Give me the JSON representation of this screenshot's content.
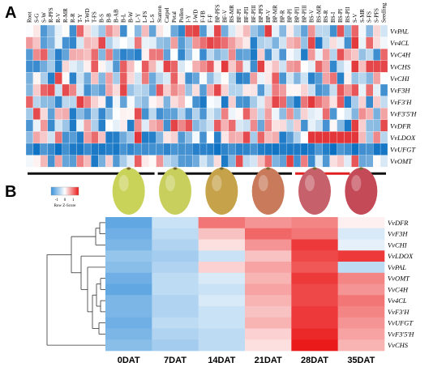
{
  "panel_a": {
    "letter": "A",
    "columns": [
      "Root",
      "S-G",
      "S-W",
      "R-PFS",
      "R-V",
      "R-MR",
      "R-R",
      "T-Y",
      "T-WD",
      "T-FS",
      "B-S",
      "B-B",
      "B-AB",
      "B-L",
      "B-W",
      "L-Y",
      "L-FS",
      "L-S",
      "Stamen",
      "Carpel",
      "Petal",
      "Pollen",
      "I-Y",
      "I-WD",
      "F-FB",
      "F-F",
      "BP-PFS",
      "BF-V",
      "BS-MR",
      "BF-PI",
      "BF-PII",
      "BF-PIII",
      "BP-PFS",
      "BP-V",
      "BP-MR",
      "BP-R",
      "BP-PI",
      "BP-PII",
      "BP-PIII",
      "BS-V",
      "BS-MR",
      "BS-R",
      "BS-I",
      "BS-PI",
      "BS-PII",
      "S-V",
      "S-MR",
      "S-FS",
      "S-PFS",
      "Seedling"
    ],
    "genes": [
      "VvPAL",
      "Vv4CL",
      "VvC4H",
      "VvCHS",
      "VvCHI",
      "VvF3H",
      "VvF3'H",
      "VvF3'5'H",
      "VvDFR",
      "VvLDOX",
      "VvUFGT",
      "VvOMT"
    ],
    "colors": {
      "low": "#0a6fc2",
      "mid": "#ffffff",
      "high": "#e0272b"
    }
  },
  "panel_b": {
    "letter": "B",
    "color_key": {
      "title": "Row Z-Score",
      "ticks": [
        "-1",
        "0",
        "1"
      ]
    },
    "stages": [
      "0DAT",
      "7DAT",
      "14DAT",
      "21DAT",
      "28DAT",
      "35DAT"
    ],
    "genes": [
      "VvDFR",
      "VvF3H",
      "VvCHI",
      "VvLDOX",
      "VvPAL",
      "VvOMT",
      "VvC4H",
      "Vv4CL",
      "VvF3'H",
      "VvUFGT",
      "VvF3'5'H",
      "VvCHS"
    ],
    "berry_colors": [
      "#c9d35a",
      "#c8cf5c",
      "#c6a24a",
      "#c97a5a",
      "#c6606a",
      "#c44a58"
    ],
    "colors": {
      "low": "#3a92db",
      "mid": "#ffffff",
      "high": "#ea1a1a"
    },
    "chart_data": {
      "type": "heatmap",
      "x": [
        "0DAT",
        "7DAT",
        "14DAT",
        "21DAT",
        "28DAT",
        "35DAT"
      ],
      "y": [
        "VvDFR",
        "VvF3H",
        "VvCHI",
        "VvLDOX",
        "VvPAL",
        "VvOMT",
        "VvC4H",
        "Vv4CL",
        "VvF3'H",
        "VvUFGT",
        "VvF3'5'H",
        "VvCHS"
      ],
      "z": [
        [
          -1.2,
          -0.4,
          0.9,
          0.7,
          0.8,
          0.1
        ],
        [
          -1.1,
          -0.5,
          0.4,
          1.0,
          0.9,
          -0.3
        ],
        [
          -1.0,
          -0.6,
          0.2,
          0.7,
          1.3,
          -0.2
        ],
        [
          -0.8,
          -0.7,
          -0.4,
          0.4,
          1.2,
          1.3
        ],
        [
          -0.9,
          -0.6,
          0.3,
          0.6,
          1.1,
          -0.5
        ],
        [
          -1.1,
          -0.5,
          -0.3,
          0.5,
          1.3,
          0.8
        ],
        [
          -1.2,
          -0.5,
          -0.4,
          0.6,
          1.2,
          0.7
        ],
        [
          -1.0,
          -0.6,
          -0.3,
          0.5,
          1.2,
          0.9
        ],
        [
          -1.0,
          -0.6,
          -0.4,
          0.4,
          1.3,
          0.8
        ],
        [
          -1.1,
          -0.5,
          -0.4,
          0.5,
          1.3,
          0.7
        ],
        [
          -1.0,
          -0.6,
          -0.5,
          0.3,
          1.4,
          0.6
        ],
        [
          -0.9,
          -0.7,
          -0.5,
          0.2,
          1.5,
          0.5
        ]
      ],
      "zlim": [
        -1.5,
        1.5
      ]
    }
  }
}
